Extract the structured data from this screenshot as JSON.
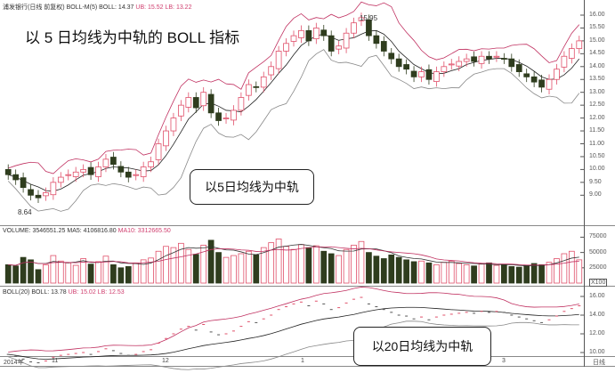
{
  "header": {
    "stock": "浦发银行(日线 前复权)",
    "indicator": "BOLL-M(5)",
    "boll": "BOLL: 14.37",
    "ub": "UB: 15.52",
    "lb": "LB: 13.22"
  },
  "volume_header": {
    "volume": "VOLUME: 3546551.25",
    "ma5": "MA5: 4106816.80",
    "ma10": "MA10: 3312665.50"
  },
  "boll20_header": {
    "label": "BOLL(20)",
    "boll": "BOLL: 13.78",
    "ub": "UB: 15.02",
    "lb": "LB: 12.53"
  },
  "annotations": {
    "title": "以 5 日均线为中轨的 BOLL 指标",
    "callout_top": "以5日均线为中轨",
    "callout_bottom": "以20日均线为中轨",
    "high_label": "15.95",
    "low_label": "8.64"
  },
  "price_axis": [
    "16.00",
    "15.50",
    "15.00",
    "14.50",
    "14.00",
    "13.50",
    "13.00",
    "12.50",
    "12.00",
    "11.50",
    "11.00",
    "10.50",
    "10.00",
    "9.50",
    "9.00"
  ],
  "volume_axis": [
    "75000",
    "50000",
    "25000"
  ],
  "volume_unit": "X100",
  "boll20_axis": [
    "16.00",
    "14.00",
    "12.00",
    "10.00"
  ],
  "x_axis": [
    "2014年",
    "11",
    "12",
    "1",
    "3"
  ],
  "period": "日线",
  "colors": {
    "up": "#e0506a",
    "down": "#2f3d1e",
    "mid": "#222222",
    "band": "#c03060",
    "band20": "#999999"
  },
  "chart_data": {
    "type": "candlestick",
    "closes": [
      9.8,
      9.6,
      9.3,
      9.0,
      8.9,
      9.1,
      9.5,
      9.7,
      9.8,
      9.9,
      10.0,
      9.8,
      10.1,
      10.4,
      10.2,
      9.9,
      9.7,
      9.8,
      10.1,
      10.3,
      11.0,
      11.5,
      12.0,
      12.5,
      12.8,
      12.4,
      13.0,
      12.2,
      11.9,
      12.0,
      12.3,
      12.8,
      13.3,
      13.2,
      13.6,
      14.0,
      14.6,
      14.9,
      15.2,
      15.4,
      15.0,
      15.5,
      15.2,
      14.6,
      14.8,
      15.3,
      15.7,
      15.9,
      15.2,
      14.9,
      14.6,
      14.3,
      14.0,
      13.9,
      13.6,
      13.8,
      13.5,
      13.8,
      14.0,
      14.1,
      14.2,
      14.3,
      14.2,
      14.4,
      14.3,
      14.4,
      14.3,
      14.0,
      13.8,
      13.6,
      13.4,
      13.2,
      13.5,
      13.9,
      14.4,
      14.7,
      15.0
    ],
    "volumes": [
      30000,
      28000,
      42000,
      38000,
      22000,
      30000,
      45000,
      36000,
      33000,
      29000,
      40000,
      31000,
      35000,
      44000,
      30000,
      25000,
      27000,
      33000,
      38000,
      41000,
      52000,
      60000,
      58000,
      65000,
      55000,
      47000,
      62000,
      70000,
      50000,
      42000,
      45000,
      48000,
      52000,
      46000,
      58000,
      66000,
      72000,
      60000,
      55000,
      63000,
      58000,
      61000,
      52000,
      48000,
      45000,
      55000,
      62000,
      68000,
      50000,
      44000,
      40000,
      46000,
      42000,
      38000,
      35000,
      36000,
      33000,
      30000,
      34000,
      36000,
      32000,
      30000,
      28000,
      31000,
      33000,
      29000,
      30000,
      27000,
      26000,
      29000,
      32000,
      30000,
      34000,
      40000,
      48000,
      52000,
      38000
    ]
  }
}
